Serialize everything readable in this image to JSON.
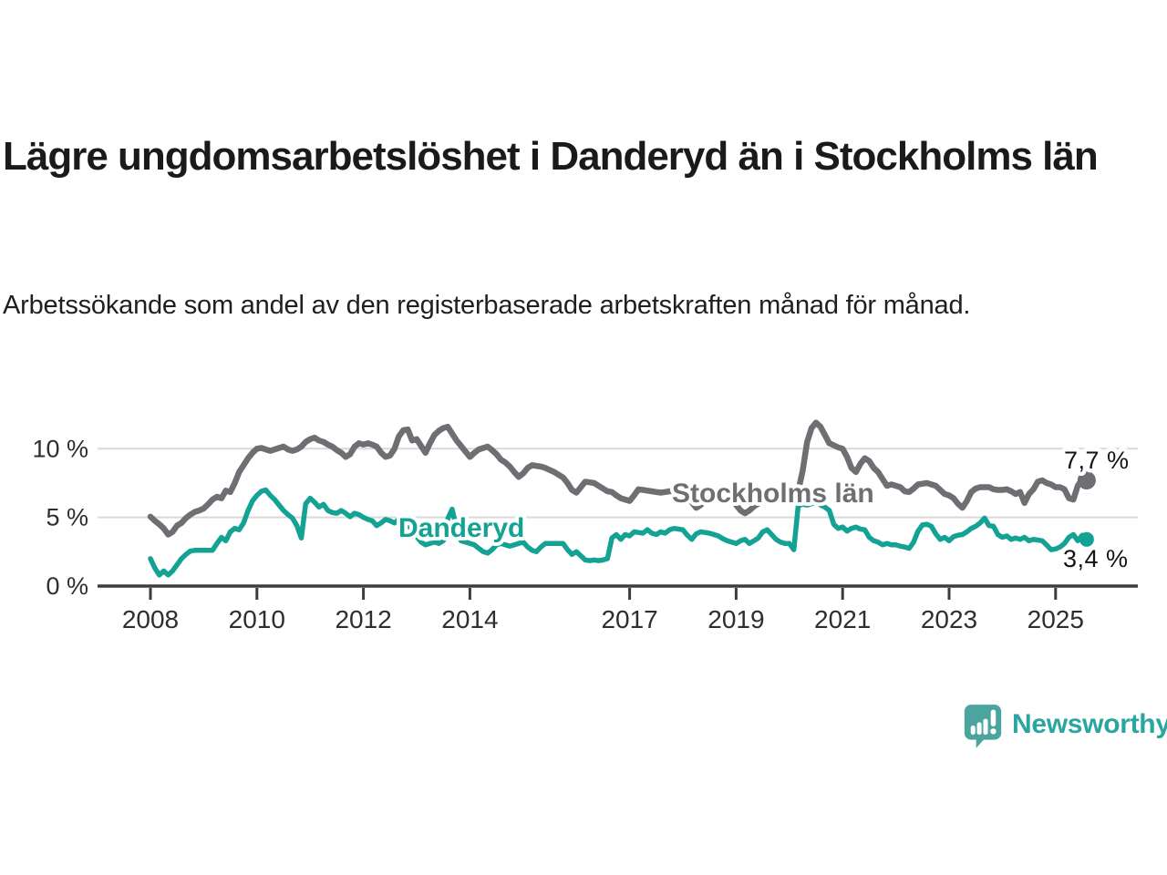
{
  "header": {
    "title": "Lägre ungdomsarbetslöshet i Danderyd än i Stockholms län",
    "subtitle": "Arbetssökande som andel av den registerbaserade arbetskraften månad för månad."
  },
  "footer": {
    "brand": "Newsworthy"
  },
  "colors": {
    "stockholm_gray": "#6f6e73",
    "danderyd_teal": "#14a294",
    "grid": "#d9d9d9",
    "axis": "#3d3d40",
    "tick_text": "#2e2e2e",
    "value_text": "#141414",
    "logo_fill": "#4ba49e",
    "logo_text": "#2aa5a0",
    "title_text": "#191b18"
  },
  "chart_data": {
    "type": "line",
    "x_start": "2008-01",
    "x_end": "2025-08",
    "x_interval": "monthly",
    "ylim": [
      0,
      12.5
    ],
    "grid": "horizontal",
    "legend_position": "inline-labels",
    "yticks": [
      {
        "value": 0,
        "label": "0 %"
      },
      {
        "value": 5,
        "label": "5 %"
      },
      {
        "value": 10,
        "label": "10 %"
      }
    ],
    "xticks": [
      {
        "year": 2008,
        "label": "2008"
      },
      {
        "year": 2010,
        "label": "2010"
      },
      {
        "year": 2012,
        "label": "2012"
      },
      {
        "year": 2014,
        "label": "2014"
      },
      {
        "year": 2017,
        "label": "2017"
      },
      {
        "year": 2019,
        "label": "2019"
      },
      {
        "year": 2021,
        "label": "2021"
      },
      {
        "year": 2023,
        "label": "2023"
      },
      {
        "year": 2025,
        "label": "2025"
      }
    ],
    "series": [
      {
        "name": "Stockholms län",
        "color": "#6f6e73",
        "end_label": "7,7 %",
        "end_value": 7.7,
        "values": [
          5.05,
          4.75,
          4.5,
          4.2,
          3.75,
          3.95,
          4.4,
          4.6,
          4.95,
          5.2,
          5.4,
          5.5,
          5.65,
          5.95,
          6.3,
          6.5,
          6.4,
          6.95,
          6.85,
          7.5,
          8.3,
          8.8,
          9.3,
          9.7,
          10.0,
          10.05,
          9.95,
          9.85,
          9.95,
          10.05,
          10.15,
          9.95,
          9.85,
          9.95,
          10.15,
          10.5,
          10.7,
          10.8,
          10.6,
          10.5,
          10.3,
          10.15,
          9.9,
          9.7,
          9.4,
          9.6,
          10.15,
          10.4,
          10.3,
          10.4,
          10.3,
          10.15,
          9.7,
          9.4,
          9.5,
          10.0,
          10.9,
          11.35,
          11.4,
          10.6,
          10.7,
          10.2,
          9.7,
          10.4,
          11.0,
          11.3,
          11.5,
          11.6,
          11.1,
          10.6,
          10.2,
          9.8,
          9.4,
          9.7,
          9.95,
          10.05,
          10.15,
          9.9,
          9.6,
          9.2,
          9.0,
          8.7,
          8.3,
          7.95,
          8.2,
          8.6,
          8.8,
          8.75,
          8.7,
          8.6,
          8.45,
          8.3,
          8.1,
          7.9,
          7.5,
          7.0,
          6.8,
          7.2,
          7.6,
          7.55,
          7.5,
          7.3,
          7.1,
          6.9,
          6.85,
          6.6,
          6.4,
          6.3,
          6.2,
          6.6,
          7.05,
          7.0,
          6.95,
          6.9,
          6.85,
          6.8,
          6.85,
          6.9,
          6.95,
          7.0,
          7.0,
          6.6,
          6.1,
          5.7,
          5.9,
          6.2,
          6.5,
          6.8,
          6.9,
          6.8,
          6.7,
          6.5,
          5.9,
          5.5,
          5.3,
          5.5,
          5.8,
          6.0,
          6.2,
          6.3,
          6.2,
          6.2,
          6.2,
          6.1,
          6.1,
          6.2,
          6.9,
          8.4,
          10.5,
          11.5,
          11.9,
          11.6,
          11.0,
          10.4,
          10.25,
          10.1,
          10.0,
          9.4,
          8.6,
          8.3,
          8.9,
          9.3,
          9.1,
          8.6,
          8.3,
          7.8,
          7.3,
          7.4,
          7.3,
          7.2,
          6.9,
          6.85,
          7.1,
          7.4,
          7.45,
          7.5,
          7.4,
          7.3,
          7.0,
          6.7,
          6.6,
          6.4,
          6.0,
          5.7,
          6.2,
          6.85,
          7.1,
          7.2,
          7.2,
          7.2,
          7.05,
          7.0,
          7.0,
          7.05,
          6.9,
          6.7,
          6.85,
          6.05,
          6.7,
          7.05,
          7.6,
          7.7,
          7.5,
          7.4,
          7.2,
          7.2,
          7.05,
          6.4,
          6.3,
          7.3,
          7.8,
          7.7
        ]
      },
      {
        "name": "Danderyd",
        "color": "#14a294",
        "end_label": "3,4 %",
        "end_value": 3.4,
        "values": [
          2.0,
          1.3,
          0.8,
          1.1,
          0.8,
          1.1,
          1.55,
          2.0,
          2.3,
          2.55,
          2.6,
          2.6,
          2.6,
          2.6,
          2.6,
          3.1,
          3.55,
          3.3,
          3.95,
          4.2,
          4.1,
          4.6,
          5.5,
          6.2,
          6.6,
          6.9,
          7.0,
          6.6,
          6.3,
          5.9,
          5.5,
          5.2,
          4.95,
          4.4,
          3.5,
          6.0,
          6.4,
          6.1,
          5.75,
          5.95,
          5.5,
          5.35,
          5.3,
          5.5,
          5.3,
          5.05,
          5.3,
          5.2,
          5.0,
          4.85,
          4.75,
          4.4,
          4.6,
          4.85,
          4.75,
          4.6,
          4.85,
          4.8,
          4.5,
          4.0,
          3.6,
          3.2,
          3.0,
          3.1,
          3.2,
          3.1,
          3.3,
          4.9,
          5.6,
          4.2,
          3.3,
          3.2,
          3.1,
          3.0,
          2.75,
          2.5,
          2.4,
          2.65,
          3.0,
          3.1,
          3.0,
          2.9,
          3.0,
          3.1,
          3.2,
          2.85,
          2.6,
          2.5,
          2.85,
          3.1,
          3.1,
          3.1,
          3.1,
          3.1,
          2.65,
          2.3,
          2.5,
          2.2,
          1.9,
          1.85,
          1.9,
          1.85,
          1.9,
          2.0,
          3.5,
          3.75,
          3.4,
          3.75,
          3.65,
          3.95,
          3.9,
          3.85,
          4.1,
          3.85,
          3.75,
          3.95,
          3.85,
          4.1,
          4.2,
          4.15,
          4.1,
          3.7,
          3.4,
          3.8,
          3.95,
          3.9,
          3.85,
          3.75,
          3.65,
          3.45,
          3.3,
          3.2,
          3.1,
          3.3,
          3.4,
          3.1,
          3.3,
          3.5,
          3.95,
          4.1,
          3.75,
          3.4,
          3.2,
          3.1,
          3.1,
          2.65,
          5.85,
          5.95,
          5.9,
          6.0,
          6.15,
          5.9,
          5.75,
          5.5,
          4.5,
          4.2,
          4.3,
          4.0,
          4.2,
          4.3,
          4.15,
          4.1,
          3.55,
          3.3,
          3.2,
          3.0,
          3.1,
          3.0,
          3.0,
          2.9,
          2.85,
          2.75,
          3.2,
          4.0,
          4.45,
          4.5,
          4.35,
          3.8,
          3.4,
          3.55,
          3.3,
          3.6,
          3.7,
          3.75,
          3.95,
          4.2,
          4.35,
          4.6,
          4.95,
          4.4,
          4.35,
          3.75,
          3.55,
          3.65,
          3.4,
          3.5,
          3.4,
          3.55,
          3.3,
          3.4,
          3.35,
          3.3,
          2.98,
          2.65,
          2.7,
          2.85,
          3.1,
          3.55,
          3.75,
          3.3,
          3.7,
          3.4
        ]
      }
    ]
  }
}
